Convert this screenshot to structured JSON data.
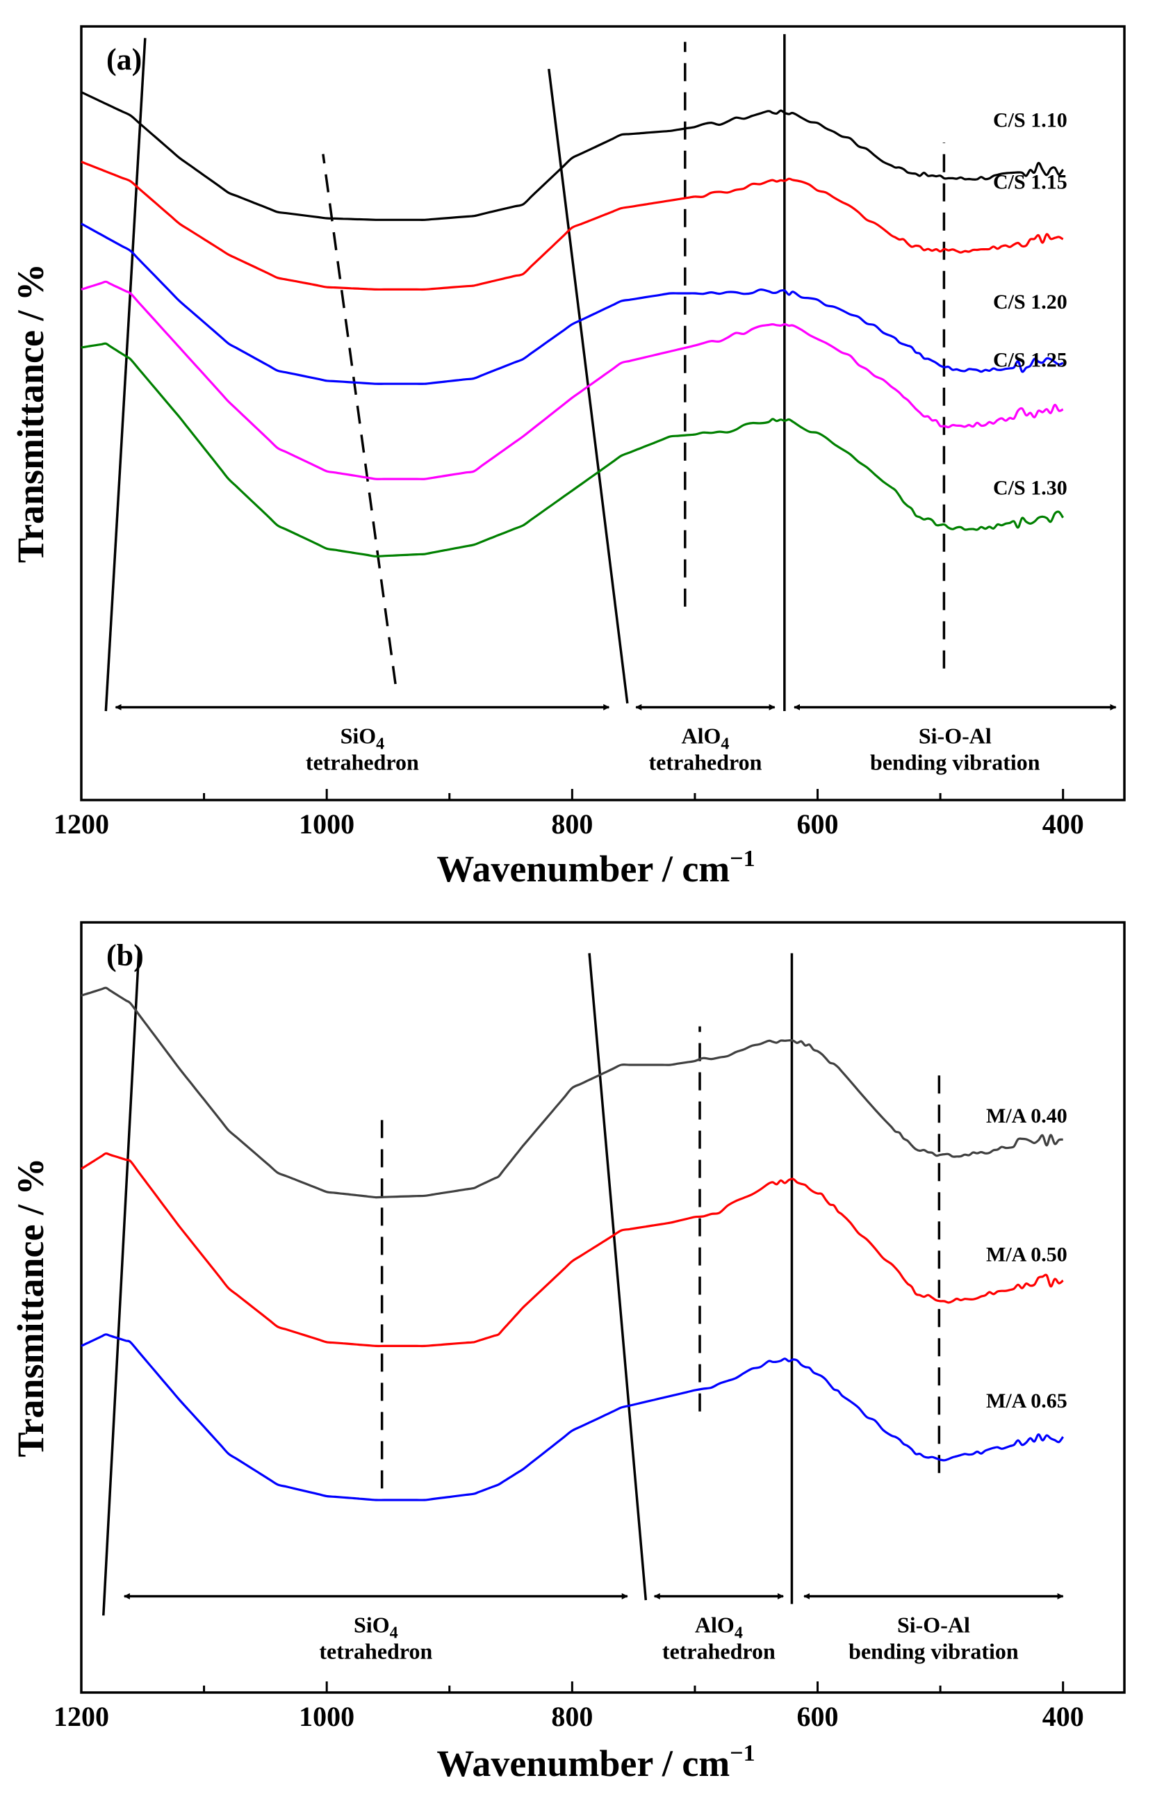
{
  "chart_data": [
    {
      "type": "line",
      "panel_label": "(a)",
      "xlabel": "Wavenumber / cm",
      "xlabel_superscript": "−1",
      "ylabel": "Transmittance / %",
      "xlim": [
        1200,
        350
      ],
      "x_reversed": true,
      "x_ticks": [
        1200,
        1000,
        800,
        600,
        400
      ],
      "x_tick_labels": [
        "1200",
        "1000",
        "800",
        "600",
        "400"
      ],
      "y_ticks": "none",
      "ylim": [
        0,
        100
      ],
      "series": [
        {
          "name": "C/S 1.10",
          "color": "#000000",
          "points": [
            [
              1200,
              91.5
            ],
            [
              1160,
              88.5
            ],
            [
              1120,
              83.0
            ],
            [
              1080,
              78.5
            ],
            [
              1040,
              76.0
            ],
            [
              1000,
              75.2
            ],
            [
              960,
              75.0
            ],
            [
              920,
              75.0
            ],
            [
              880,
              75.5
            ],
            [
              840,
              77.0
            ],
            [
              800,
              83.0
            ],
            [
              760,
              86.0
            ],
            [
              720,
              86.5
            ],
            [
              680,
              87.5
            ],
            [
              640,
              89.0
            ],
            [
              620,
              88.8
            ],
            [
              580,
              86.0
            ],
            [
              540,
              82.0
            ],
            [
              520,
              81.0
            ],
            [
              500,
              80.5
            ],
            [
              480,
              80.3
            ],
            [
              460,
              80.5
            ],
            [
              440,
              81.0
            ],
            [
              420,
              81.5
            ],
            [
              400,
              81.5
            ]
          ]
        },
        {
          "name": "C/S 1.15",
          "color": "#ff0000",
          "points": [
            [
              1200,
              82.5
            ],
            [
              1160,
              80.0
            ],
            [
              1120,
              74.5
            ],
            [
              1080,
              70.5
            ],
            [
              1040,
              67.5
            ],
            [
              1000,
              66.3
            ],
            [
              960,
              66.0
            ],
            [
              920,
              66.0
            ],
            [
              880,
              66.5
            ],
            [
              840,
              68.0
            ],
            [
              800,
              74.0
            ],
            [
              760,
              76.5
            ],
            [
              720,
              77.5
            ],
            [
              680,
              78.5
            ],
            [
              640,
              80.0
            ],
            [
              620,
              80.3
            ],
            [
              580,
              77.5
            ],
            [
              540,
              73.0
            ],
            [
              520,
              71.5
            ],
            [
              500,
              71.0
            ],
            [
              480,
              71.0
            ],
            [
              460,
              71.3
            ],
            [
              440,
              71.8
            ],
            [
              420,
              72.5
            ],
            [
              400,
              72.5
            ]
          ]
        },
        {
          "name": "C/S 1.20",
          "color": "#0000ff",
          "points": [
            [
              1200,
              74.5
            ],
            [
              1160,
              71.0
            ],
            [
              1120,
              64.5
            ],
            [
              1080,
              59.0
            ],
            [
              1040,
              55.5
            ],
            [
              1000,
              54.2
            ],
            [
              960,
              53.8
            ],
            [
              920,
              53.8
            ],
            [
              880,
              54.5
            ],
            [
              840,
              57.0
            ],
            [
              800,
              61.5
            ],
            [
              760,
              64.5
            ],
            [
              720,
              65.5
            ],
            [
              680,
              65.5
            ],
            [
              640,
              65.8
            ],
            [
              620,
              65.5
            ],
            [
              580,
              63.5
            ],
            [
              540,
              60.0
            ],
            [
              520,
              58.0
            ],
            [
              500,
              56.0
            ],
            [
              480,
              55.5
            ],
            [
              460,
              55.5
            ],
            [
              440,
              56.0
            ],
            [
              420,
              56.5
            ],
            [
              400,
              56.5
            ]
          ]
        },
        {
          "name": "C/S 1.25",
          "color": "#ff00ff",
          "points": [
            [
              1200,
              66.0
            ],
            [
              1180,
              67.0
            ],
            [
              1160,
              65.5
            ],
            [
              1120,
              58.5
            ],
            [
              1080,
              51.5
            ],
            [
              1040,
              45.5
            ],
            [
              1000,
              42.5
            ],
            [
              960,
              41.5
            ],
            [
              920,
              41.5
            ],
            [
              880,
              42.5
            ],
            [
              840,
              47.0
            ],
            [
              800,
              52.0
            ],
            [
              760,
              56.5
            ],
            [
              720,
              58.0
            ],
            [
              680,
              59.5
            ],
            [
              640,
              61.5
            ],
            [
              620,
              61.3
            ],
            [
              580,
              58.0
            ],
            [
              540,
              53.5
            ],
            [
              520,
              50.5
            ],
            [
              500,
              48.5
            ],
            [
              480,
              48.3
            ],
            [
              460,
              48.8
            ],
            [
              440,
              49.5
            ],
            [
              420,
              50.5
            ],
            [
              400,
              50.5
            ]
          ]
        },
        {
          "name": "C/S 1.30",
          "color": "#008000",
          "points": [
            [
              1200,
              58.5
            ],
            [
              1180,
              59.0
            ],
            [
              1160,
              57.0
            ],
            [
              1120,
              49.5
            ],
            [
              1080,
              41.5
            ],
            [
              1040,
              35.5
            ],
            [
              1000,
              32.5
            ],
            [
              960,
              31.5
            ],
            [
              920,
              31.8
            ],
            [
              880,
              33.0
            ],
            [
              840,
              35.5
            ],
            [
              800,
              40.0
            ],
            [
              760,
              44.5
            ],
            [
              720,
              47.0
            ],
            [
              680,
              47.5
            ],
            [
              640,
              49.0
            ],
            [
              620,
              49.0
            ],
            [
              580,
              45.5
            ],
            [
              540,
              40.5
            ],
            [
              520,
              37.0
            ],
            [
              500,
              35.5
            ],
            [
              480,
              35.0
            ],
            [
              460,
              35.2
            ],
            [
              440,
              35.8
            ],
            [
              420,
              36.5
            ],
            [
              400,
              36.5
            ]
          ]
        }
      ],
      "label_positions_y": [
        87.0,
        79.0,
        63.5,
        56.0,
        39.5
      ],
      "guide_lines": [
        {
          "style": "solid",
          "from": [
            1180,
            11.5
          ],
          "to": [
            1148,
            98.5
          ]
        },
        {
          "style": "solid",
          "from": [
            755,
            12.5
          ],
          "to": [
            819,
            94.5
          ]
        },
        {
          "style": "solid",
          "from": [
            627,
            11.5
          ],
          "to": [
            627,
            99.0
          ]
        },
        {
          "style": "dash",
          "from": [
            944,
            15.0
          ],
          "to": [
            1003,
            83.5
          ]
        },
        {
          "style": "dash",
          "from": [
            708,
            25.0
          ],
          "to": [
            708,
            98.0
          ]
        },
        {
          "style": "dash",
          "from": [
            497,
            17.0
          ],
          "to": [
            497,
            85.0
          ]
        }
      ],
      "regions": [
        {
          "label_line1": "SiO",
          "label_sub": "4",
          "label_line2": "tetrahedron",
          "from": 1172,
          "to": 770,
          "arrow_y": 12.0
        },
        {
          "label_line1": "AlO",
          "label_sub": "4",
          "label_line2": "tetrahedron",
          "from": 748,
          "to": 635,
          "arrow_y": 12.0
        },
        {
          "label_line1": "Si-O-Al",
          "label_sub": "",
          "label_line2": "bending vibration",
          "from": 619,
          "to": 357,
          "arrow_y": 12.0
        }
      ]
    },
    {
      "type": "line",
      "panel_label": "(b)",
      "xlabel": "Wavenumber / cm",
      "xlabel_superscript": "−1",
      "ylabel": "Transmittance / %",
      "xlim": [
        1200,
        350
      ],
      "x_reversed": true,
      "x_ticks": [
        1200,
        1000,
        800,
        600,
        400
      ],
      "x_tick_labels": [
        "1200",
        "1000",
        "800",
        "600",
        "400"
      ],
      "y_ticks": "none",
      "ylim": [
        0,
        100
      ],
      "series": [
        {
          "name": "M/A 0.40",
          "color": "#404040",
          "points": [
            [
              1200,
              90.5
            ],
            [
              1180,
              91.5
            ],
            [
              1160,
              89.5
            ],
            [
              1120,
              81.0
            ],
            [
              1080,
              73.0
            ],
            [
              1040,
              67.5
            ],
            [
              1000,
              65.0
            ],
            [
              960,
              64.3
            ],
            [
              920,
              64.5
            ],
            [
              880,
              65.5
            ],
            [
              860,
              67.0
            ],
            [
              840,
              71.0
            ],
            [
              800,
              78.5
            ],
            [
              760,
              81.5
            ],
            [
              720,
              81.5
            ],
            [
              680,
              82.5
            ],
            [
              640,
              84.5
            ],
            [
              620,
              84.8
            ],
            [
              600,
              83.5
            ],
            [
              580,
              80.5
            ],
            [
              540,
              73.5
            ],
            [
              520,
              70.5
            ],
            [
              500,
              69.8
            ],
            [
              480,
              69.8
            ],
            [
              460,
              70.3
            ],
            [
              440,
              71.0
            ],
            [
              420,
              71.8
            ],
            [
              400,
              71.8
            ]
          ]
        },
        {
          "name": "M/A 0.50",
          "color": "#ff0000",
          "points": [
            [
              1200,
              68.0
            ],
            [
              1180,
              70.0
            ],
            [
              1160,
              69.0
            ],
            [
              1120,
              60.5
            ],
            [
              1080,
              52.5
            ],
            [
              1040,
              47.5
            ],
            [
              1000,
              45.5
            ],
            [
              960,
              45.0
            ],
            [
              920,
              45.0
            ],
            [
              880,
              45.5
            ],
            [
              860,
              46.5
            ],
            [
              840,
              50.0
            ],
            [
              800,
              56.0
            ],
            [
              760,
              60.0
            ],
            [
              720,
              61.0
            ],
            [
              680,
              62.5
            ],
            [
              640,
              66.0
            ],
            [
              620,
              66.5
            ],
            [
              600,
              65.0
            ],
            [
              580,
              62.0
            ],
            [
              540,
              55.5
            ],
            [
              520,
              52.0
            ],
            [
              500,
              50.8
            ],
            [
              480,
              51.0
            ],
            [
              460,
              51.8
            ],
            [
              440,
              52.5
            ],
            [
              420,
              53.5
            ],
            [
              400,
              53.5
            ]
          ]
        },
        {
          "name": "M/A 0.65",
          "color": "#0000ff",
          "points": [
            [
              1200,
              45.0
            ],
            [
              1180,
              46.5
            ],
            [
              1160,
              45.5
            ],
            [
              1120,
              38.0
            ],
            [
              1080,
              31.0
            ],
            [
              1040,
              27.0
            ],
            [
              1000,
              25.5
            ],
            [
              960,
              25.0
            ],
            [
              920,
              25.0
            ],
            [
              880,
              25.8
            ],
            [
              860,
              27.0
            ],
            [
              840,
              29.0
            ],
            [
              800,
              34.0
            ],
            [
              760,
              37.0
            ],
            [
              720,
              38.5
            ],
            [
              680,
              40.0
            ],
            [
              640,
              43.0
            ],
            [
              620,
              43.2
            ],
            [
              600,
              41.5
            ],
            [
              580,
              38.5
            ],
            [
              540,
              33.5
            ],
            [
              520,
              31.0
            ],
            [
              500,
              30.2
            ],
            [
              480,
              30.8
            ],
            [
              460,
              31.5
            ],
            [
              440,
              32.2
            ],
            [
              420,
              33.2
            ],
            [
              400,
              33.2
            ]
          ]
        }
      ],
      "label_positions_y": [
        74.0,
        56.0,
        37.0
      ],
      "guide_lines": [
        {
          "style": "solid",
          "from": [
            1182,
            10.0
          ],
          "to": [
            1153,
            96.5
          ]
        },
        {
          "style": "solid",
          "from": [
            740,
            12.0
          ],
          "to": [
            786,
            96.0
          ]
        },
        {
          "style": "solid",
          "from": [
            621,
            11.5
          ],
          "to": [
            621,
            96.0
          ]
        },
        {
          "style": "dash",
          "from": [
            955,
            26.5
          ],
          "to": [
            955,
            75.5
          ]
        },
        {
          "style": "dash",
          "from": [
            696,
            36.5
          ],
          "to": [
            696,
            86.5
          ]
        },
        {
          "style": "dash",
          "from": [
            501,
            28.5
          ],
          "to": [
            501,
            80.5
          ]
        }
      ],
      "regions": [
        {
          "label_line1": "SiO",
          "label_sub": "4",
          "label_line2": "tetrahedron",
          "from": 1165,
          "to": 755,
          "arrow_y": 12.5
        },
        {
          "label_line1": "AlO",
          "label_sub": "4",
          "label_line2": "tetrahedron",
          "from": 733,
          "to": 628,
          "arrow_y": 12.5
        },
        {
          "label_line1": "Si-O-Al",
          "label_sub": "",
          "label_line2": "bending vibration",
          "from": 611,
          "to": 400,
          "arrow_y": 12.5
        }
      ]
    }
  ]
}
